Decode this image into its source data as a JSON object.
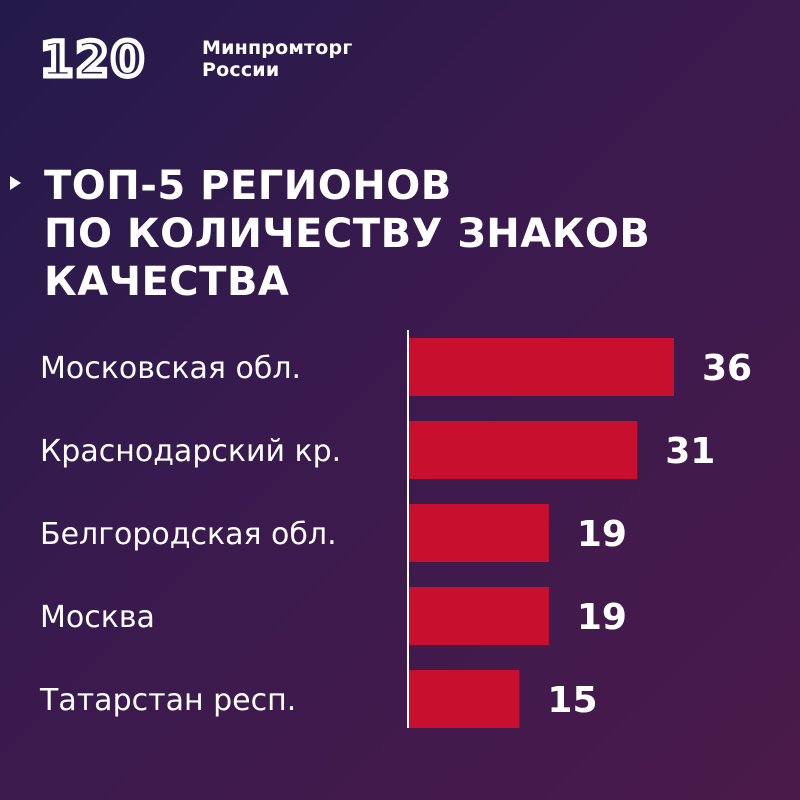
{
  "brand": {
    "logo_number": "120",
    "org_line1": "Минпромторг",
    "org_line2": "России"
  },
  "title_lines": [
    "ТОП-5 РЕГИОНОВ",
    "ПО КОЛИЧЕСТВУ ЗНАКОВ",
    "КАЧЕСТВА"
  ],
  "colors": {
    "bar": "#c8102e",
    "background_start": "#231a4a",
    "background_end": "#4a1a4a",
    "text": "#ffffff"
  },
  "icons": {
    "title_marker": "triangle-right-icon"
  },
  "chart_data": {
    "type": "bar",
    "orientation": "horizontal",
    "title": "ТОП-5 РЕГИОНОВ ПО КОЛИЧЕСТВУ ЗНАКОВ КАЧЕСТВА",
    "categories": [
      "Московская обл.",
      "Краснодарский кр.",
      "Белгородская обл.",
      "Москва",
      "Татарстан респ."
    ],
    "values": [
      36,
      31,
      19,
      19,
      15
    ],
    "data_labels": [
      "36",
      "31",
      "19",
      "19",
      "15"
    ],
    "xlim": [
      0,
      36
    ],
    "grid": false,
    "legend": "none"
  }
}
